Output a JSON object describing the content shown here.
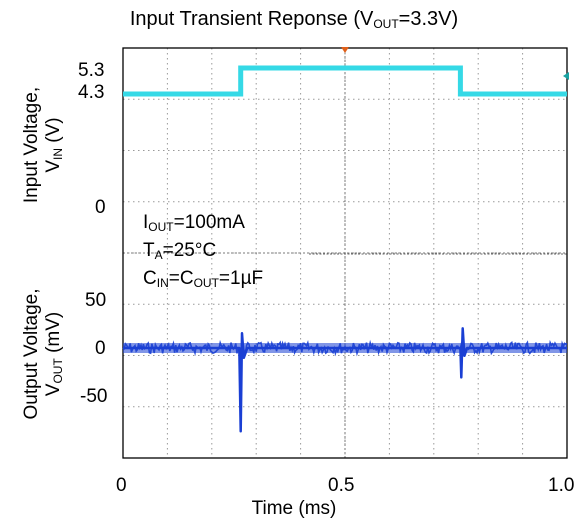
{
  "chart_data": {
    "type": "line",
    "title": "Input Transient Reponse (V",
    "title_sub": "OUT",
    "title_tail": "=3.3V)",
    "xlabel": "Time (ms)",
    "x_ticks": [
      "0",
      "0.5",
      "1.0"
    ],
    "xlim": [
      0,
      1.0
    ],
    "grid": "dotted",
    "panels": [
      {
        "name": "input",
        "ylabel_line1": "Input Voltage,",
        "ylabel_line2_main": "V",
        "ylabel_line2_sub": "IN",
        "ylabel_line2_tail": " (V)",
        "y_ticks": [
          "5.3",
          "4.3",
          "0"
        ],
        "color": "#35d9e6",
        "series": {
          "x": [
            0,
            0.265,
            0.265,
            0.76,
            0.76,
            1.0
          ],
          "y": [
            4.3,
            4.3,
            5.3,
            5.3,
            4.3,
            4.3
          ]
        }
      },
      {
        "name": "output",
        "ylabel_line1": "Output Voltage,",
        "ylabel_line2_main": "V",
        "ylabel_line2_sub": "OUT",
        "ylabel_line2_tail": " (mV)",
        "y_ticks": [
          "50",
          "0",
          "-50"
        ],
        "color": "#1a3fd4",
        "series": {
          "x": [
            0,
            0.262,
            0.265,
            0.268,
            0.272,
            0.28,
            0.76,
            0.762,
            0.765,
            0.769,
            0.775,
            1.0
          ],
          "y": [
            0,
            0,
            -85,
            15,
            -10,
            0,
            0,
            -30,
            20,
            -8,
            0,
            0
          ]
        }
      }
    ],
    "annotations": {
      "i_main": "I",
      "i_sub": "OUT",
      "i_tail": "=100mA",
      "t_main": "T",
      "t_sub": "A",
      "t_tail": "=25°C",
      "c_main": "C",
      "c_sub1": "IN",
      "c_mid": "=C",
      "c_sub2": "OUT",
      "c_tail": "=1µF"
    }
  }
}
